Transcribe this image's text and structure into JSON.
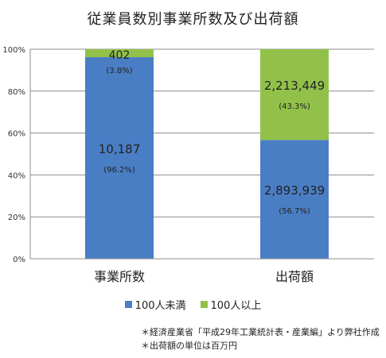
{
  "chart_data": {
    "type": "bar",
    "stacked": "percent",
    "title": "従業員数別事業所数及び出荷額",
    "categories": [
      "事業所数",
      "出荷額"
    ],
    "series": [
      {
        "name": "100人未満",
        "color": "#4a7ec4",
        "values": [
          96.2,
          56.7
        ],
        "value_labels": [
          "10,187",
          "2,893,939"
        ],
        "pct_labels": [
          "(96.2%)",
          "(56.7%)"
        ]
      },
      {
        "name": "100人以上",
        "color": "#92c14a",
        "values": [
          3.8,
          43.3
        ],
        "value_labels": [
          "402",
          "2,213,449"
        ],
        "pct_labels": [
          "(3.8%)",
          "(43.3%)"
        ]
      }
    ],
    "yticks": [
      "0%",
      "20%",
      "40%",
      "60%",
      "80%",
      "100%"
    ],
    "ylim": [
      0,
      100
    ],
    "grid": true,
    "legend": "bottom"
  },
  "notes": [
    "＊経済産業省「平成29年工業統計表・産業編」より弊社作成",
    "＊出荷額の単位は百万円"
  ]
}
